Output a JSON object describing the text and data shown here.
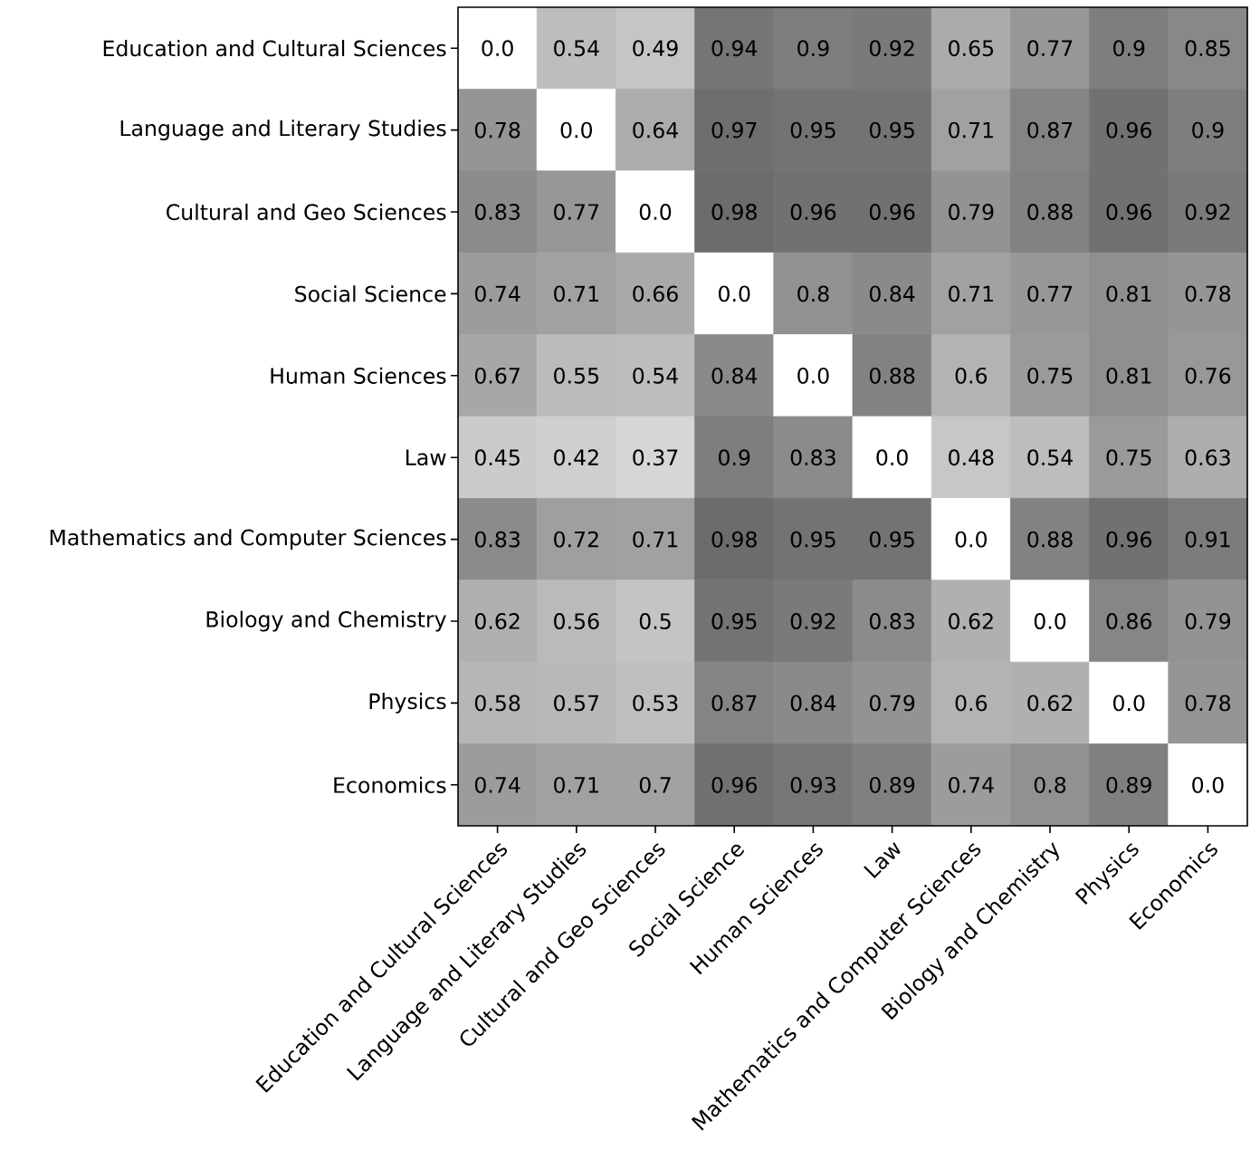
{
  "chart_data": {
    "type": "heatmap",
    "categories": [
      "Education and Cultural Sciences",
      "Language and Literary Studies",
      "Cultural and Geo Sciences",
      "Social Science",
      "Human Sciences",
      "Law",
      "Mathematics and Computer Sciences",
      "Biology and Chemistry",
      "Physics",
      "Economics"
    ],
    "y_categories": [
      "Education and Cultural Sciences",
      "Language and Literary Studies",
      "Cultural and Geo Sciences",
      "Social Science",
      "Human Sciences",
      "Law",
      "Mathematics and Computer Sciences",
      "Biology and Chemistry",
      "Physics",
      "Economics"
    ],
    "cells": [
      [
        0.0,
        0.54,
        0.49,
        0.94,
        0.9,
        0.92,
        0.65,
        0.77,
        0.9,
        0.85
      ],
      [
        0.78,
        0.0,
        0.64,
        0.97,
        0.95,
        0.95,
        0.71,
        0.87,
        0.96,
        0.9
      ],
      [
        0.83,
        0.77,
        0.0,
        0.98,
        0.96,
        0.96,
        0.79,
        0.88,
        0.96,
        0.92
      ],
      [
        0.74,
        0.71,
        0.66,
        0.0,
        0.8,
        0.84,
        0.71,
        0.77,
        0.81,
        0.78
      ],
      [
        0.67,
        0.55,
        0.54,
        0.84,
        0.0,
        0.88,
        0.6,
        0.75,
        0.81,
        0.76
      ],
      [
        0.45,
        0.42,
        0.37,
        0.9,
        0.83,
        0.0,
        0.48,
        0.54,
        0.75,
        0.63
      ],
      [
        0.83,
        0.72,
        0.71,
        0.98,
        0.95,
        0.95,
        0.0,
        0.88,
        0.96,
        0.91
      ],
      [
        0.62,
        0.56,
        0.5,
        0.95,
        0.92,
        0.83,
        0.62,
        0.0,
        0.86,
        0.79
      ],
      [
        0.58,
        0.57,
        0.53,
        0.87,
        0.84,
        0.79,
        0.6,
        0.62,
        0.0,
        0.78
      ],
      [
        0.74,
        0.71,
        0.7,
        0.96,
        0.93,
        0.89,
        0.74,
        0.8,
        0.89,
        0.0
      ]
    ],
    "cell_labels": [
      [
        "0.0",
        "0.54",
        "0.49",
        "0.94",
        "0.9",
        "0.92",
        "0.65",
        "0.77",
        "0.9",
        "0.85"
      ],
      [
        "0.78",
        "0.0",
        "0.64",
        "0.97",
        "0.95",
        "0.95",
        "0.71",
        "0.87",
        "0.96",
        "0.9"
      ],
      [
        "0.83",
        "0.77",
        "0.0",
        "0.98",
        "0.96",
        "0.96",
        "0.79",
        "0.88",
        "0.96",
        "0.92"
      ],
      [
        "0.74",
        "0.71",
        "0.66",
        "0.0",
        "0.8",
        "0.84",
        "0.71",
        "0.77",
        "0.81",
        "0.78"
      ],
      [
        "0.67",
        "0.55",
        "0.54",
        "0.84",
        "0.0",
        "0.88",
        "0.6",
        "0.75",
        "0.81",
        "0.76"
      ],
      [
        "0.45",
        "0.42",
        "0.37",
        "0.9",
        "0.83",
        "0.0",
        "0.48",
        "0.54",
        "0.75",
        "0.63"
      ],
      [
        "0.83",
        "0.72",
        "0.71",
        "0.98",
        "0.95",
        "0.95",
        "0.0",
        "0.88",
        "0.96",
        "0.91"
      ],
      [
        "0.62",
        "0.56",
        "0.5",
        "0.95",
        "0.92",
        "0.83",
        "0.62",
        "0.0",
        "0.86",
        "0.79"
      ],
      [
        "0.58",
        "0.57",
        "0.53",
        "0.87",
        "0.84",
        "0.79",
        "0.6",
        "0.62",
        "0.0",
        "0.78"
      ],
      [
        "0.74",
        "0.71",
        "0.7",
        "0.96",
        "0.93",
        "0.89",
        "0.74",
        "0.8",
        "0.89",
        "0.0"
      ]
    ]
  }
}
